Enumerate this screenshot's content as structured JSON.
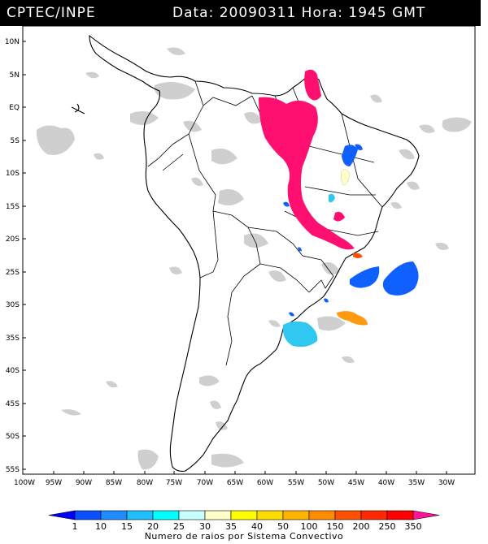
{
  "header": {
    "agency": "CPTEC/INPE",
    "date_label": "Data:",
    "date_value": "20090311",
    "time_label": "Hora:",
    "time_value": "1945 GMT"
  },
  "map": {
    "lat_labels": [
      "10N",
      "5N",
      "EQ",
      "5S",
      "10S",
      "15S",
      "20S",
      "25S",
      "30S",
      "35S",
      "40S",
      "45S",
      "50S",
      "55S"
    ],
    "lon_labels": [
      "100W",
      "95W",
      "90W",
      "85W",
      "80W",
      "75W",
      "70W",
      "65W",
      "60W",
      "55W",
      "50W",
      "45W",
      "40W",
      "35W",
      "30W"
    ]
  },
  "colorbar": {
    "title": "Numero de raios por Sistema Convectivo",
    "tick_labels": [
      "1",
      "10",
      "15",
      "20",
      "25",
      "30",
      "35",
      "40",
      "50",
      "100",
      "150",
      "200",
      "250",
      "350"
    ],
    "colors": [
      "#0000ff",
      "#0a50ff",
      "#1e8cff",
      "#1ebeff",
      "#00ffff",
      "#c8ffff",
      "#ffffc8",
      "#ffff00",
      "#ffdc00",
      "#ffb400",
      "#ff8c00",
      "#ff5000",
      "#ff2800",
      "#ff0000",
      "#ff1493"
    ]
  },
  "colors": {
    "cloud": "#cfcfcf",
    "lightning_high": "#ff1070",
    "lightning_blue": "#1060ff",
    "lightning_cyan": "#30c8f0",
    "lightning_orange": "#ff9a10"
  }
}
